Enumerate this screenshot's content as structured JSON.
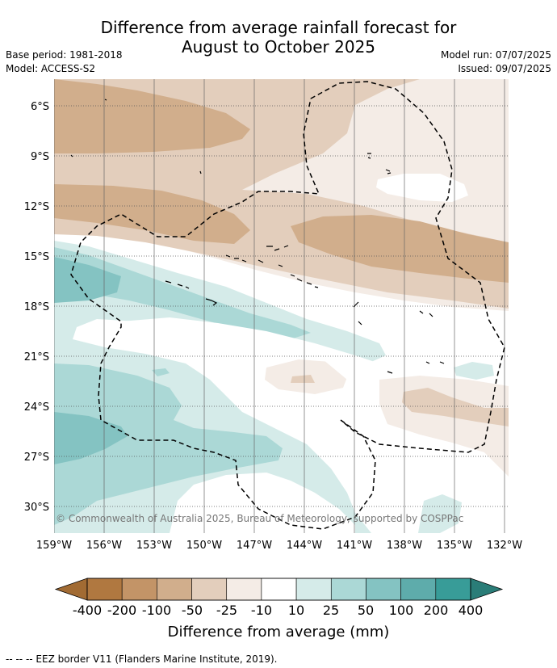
{
  "title_line1": "Difference from average rainfall forecast for",
  "title_line2": "August to October 2025",
  "base_period": "Base period: 1981-2018",
  "model": "Model: ACCESS-S2",
  "model_run": "Model run: 07/07/2025",
  "issued": "Issued: 09/07/2025",
  "lat_labels": [
    "6°S",
    "9°S",
    "12°S",
    "15°S",
    "18°S",
    "21°S",
    "24°S",
    "27°S",
    "30°S"
  ],
  "lon_labels": [
    "159°W",
    "156°W",
    "153°W",
    "150°W",
    "147°W",
    "144°W",
    "141°W",
    "138°W",
    "135°W",
    "132°W"
  ],
  "copyright": "© Commonwealth of Australia 2025, Bureau of Meteorology, supported by COSPPac",
  "colorbar": {
    "ticks": [
      "-400",
      "-200",
      "-100",
      "-50",
      "-25",
      "-10",
      "10",
      "25",
      "50",
      "100",
      "200",
      "400"
    ],
    "title": "Difference from average (mm)",
    "colors": [
      "#b07840",
      "#c39467",
      "#d1ae8c",
      "#e3cebc",
      "#f4ece6",
      "#ffffff",
      "#d5ebe9",
      "#abd8d6",
      "#84c3c2",
      "#5eacab",
      "#389c98"
    ],
    "under_color": "#a26b33",
    "over_color": "#2a7d78"
  },
  "footer": "--  --  -- EEZ border V11 (Flanders Marine Institute, 2019)."
}
